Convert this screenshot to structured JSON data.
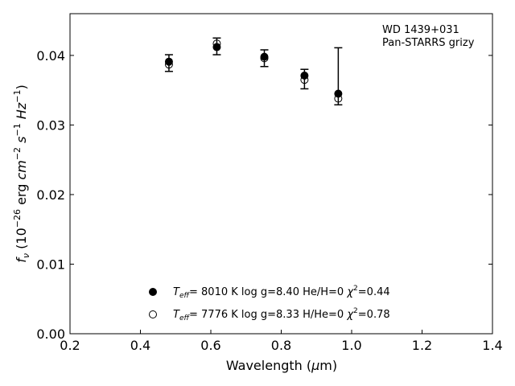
{
  "chart_data": {
    "type": "scatter",
    "xlabel_main": "Wavelength (",
    "xlabel_mu": "μ",
    "xlabel_unit": "m)",
    "ylabel": "f_ν (10^-26 erg cm^-2 s^-1 Hz^-1)",
    "xlim": [
      0.2,
      1.4
    ],
    "ylim": [
      0.0,
      0.046
    ],
    "x_ticks": [
      0.2,
      0.4,
      0.6,
      0.8,
      1.0,
      1.2,
      1.4
    ],
    "x_tick_labels": [
      "0.2",
      "0.4",
      "0.6",
      "0.8",
      "1.0",
      "1.2",
      "1.4"
    ],
    "y_ticks": [
      0.0,
      0.01,
      0.02,
      0.03,
      0.04
    ],
    "y_tick_labels": [
      "0.00",
      "0.01",
      "0.02",
      "0.03",
      "0.04"
    ],
    "grid": false,
    "annotation": {
      "line1": "WD 1439+031",
      "line2": "Pan-STARRS grizy",
      "placement": "top-right"
    },
    "observed": {
      "x": [
        0.481,
        0.617,
        0.752,
        0.866,
        0.962
      ],
      "y": [
        0.0389,
        0.0413,
        0.0397,
        0.0366,
        0.0337
      ],
      "err_low": [
        0.0012,
        0.0012,
        0.0013,
        0.0014,
        0.0008
      ],
      "err_high": [
        0.0012,
        0.0012,
        0.0011,
        0.0014,
        0.0074
      ]
    },
    "series": [
      {
        "marker": "filled-circle",
        "color": "#000000",
        "x": [
          0.481,
          0.617,
          0.752,
          0.866,
          0.962
        ],
        "y": [
          0.0391,
          0.0412,
          0.0398,
          0.0371,
          0.0345
        ],
        "legend": {
          "teff_value": "8010 K",
          "logg": "log g=8.40",
          "comp": "He/H=0",
          "chi2_value": "=0.44"
        }
      },
      {
        "marker": "open-circle",
        "color": "#000000",
        "x": [
          0.481,
          0.617,
          0.752,
          0.866,
          0.962
        ],
        "y": [
          0.0387,
          0.0417,
          0.0396,
          0.0365,
          0.0338
        ],
        "legend": {
          "teff_value": "7776 K",
          "logg": "log g=8.33",
          "comp": "H/He=0",
          "chi2_value": "=0.78"
        }
      }
    ],
    "legend_placement": "bottom-center"
  }
}
